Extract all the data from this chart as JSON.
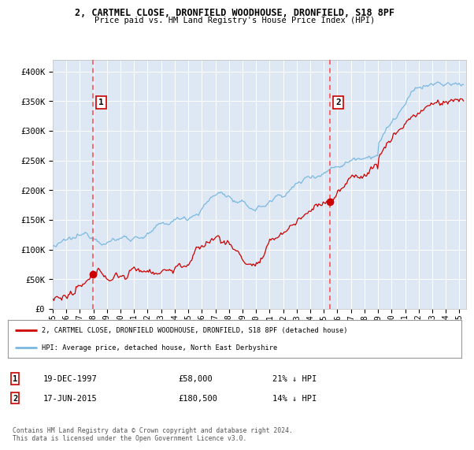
{
  "title1": "2, CARTMEL CLOSE, DRONFIELD WOODHOUSE, DRONFIELD, S18 8PF",
  "title2": "Price paid vs. HM Land Registry's House Price Index (HPI)",
  "ylabel_ticks": [
    "£0",
    "£50K",
    "£100K",
    "£150K",
    "£200K",
    "£250K",
    "£300K",
    "£350K",
    "£400K"
  ],
  "yvalues": [
    0,
    50000,
    100000,
    150000,
    200000,
    250000,
    300000,
    350000,
    400000
  ],
  "ylim": [
    0,
    420000
  ],
  "xlim_start": 1995.0,
  "xlim_end": 2025.5,
  "plot_bg": "#dde8f4",
  "grid_color": "#ffffff",
  "hpi_color": "#7ab8e0",
  "price_color": "#cc0000",
  "dashed_color": "#ff4444",
  "marker_color": "#cc0000",
  "purchase1_x": 1997.97,
  "purchase1_y": 58000,
  "purchase1_label": "1",
  "purchase2_x": 2015.46,
  "purchase2_y": 180500,
  "purchase2_label": "2",
  "legend_line1": "2, CARTMEL CLOSE, DRONFIELD WOODHOUSE, DRONFIELD, S18 8PF (detached house)",
  "legend_line2": "HPI: Average price, detached house, North East Derbyshire",
  "table_row1": [
    "1",
    "19-DEC-1997",
    "£58,000",
    "21% ↓ HPI"
  ],
  "table_row2": [
    "2",
    "17-JUN-2015",
    "£180,500",
    "14% ↓ HPI"
  ],
  "footer": "Contains HM Land Registry data © Crown copyright and database right 2024.\nThis data is licensed under the Open Government Licence v3.0.",
  "xtick_years": [
    1995,
    1996,
    1997,
    1998,
    1999,
    2000,
    2001,
    2002,
    2003,
    2004,
    2005,
    2006,
    2007,
    2008,
    2009,
    2010,
    2011,
    2012,
    2013,
    2014,
    2015,
    2016,
    2017,
    2018,
    2019,
    2020,
    2021,
    2022,
    2023,
    2024,
    2025
  ]
}
